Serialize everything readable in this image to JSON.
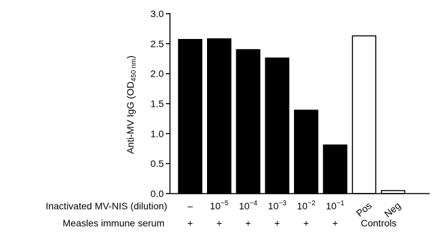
{
  "chart_data": {
    "type": "bar",
    "ylabel": {
      "main": "Anti-MV IgG (OD",
      "sub": "450 nm",
      "close": ")"
    },
    "ylim": [
      0,
      3.0
    ],
    "yticks": [
      "0.0",
      "0.5",
      "1.0",
      "1.5",
      "2.0",
      "2.5",
      "3.0"
    ],
    "categories": [
      "–",
      "10−5",
      "10−4",
      "10−3",
      "10−2",
      "10−1",
      "Pos",
      "Neg"
    ],
    "values": [
      2.57,
      2.58,
      2.4,
      2.26,
      1.39,
      0.81,
      2.63,
      0.05
    ],
    "bar_fill": [
      "#000000",
      "#000000",
      "#000000",
      "#000000",
      "#000000",
      "#000000",
      "#ffffff",
      "#ffffff"
    ],
    "grid": false,
    "legend": "none"
  },
  "rows": {
    "dilution_label": "Inactivated MV-NIS (dilution)",
    "serum_label": "Measles immune serum",
    "dilution_values": [
      {
        "text": "–"
      },
      {
        "base": "10",
        "sup": "−5"
      },
      {
        "base": "10",
        "sup": "−4"
      },
      {
        "base": "10",
        "sup": "−3"
      },
      {
        "base": "10",
        "sup": "−2"
      },
      {
        "base": "10",
        "sup": "−1"
      }
    ],
    "control_labels": [
      "Pos",
      "Neg"
    ],
    "serum_values": [
      "+",
      "+",
      "+",
      "+",
      "+",
      "+"
    ],
    "controls_label": "Controls"
  }
}
